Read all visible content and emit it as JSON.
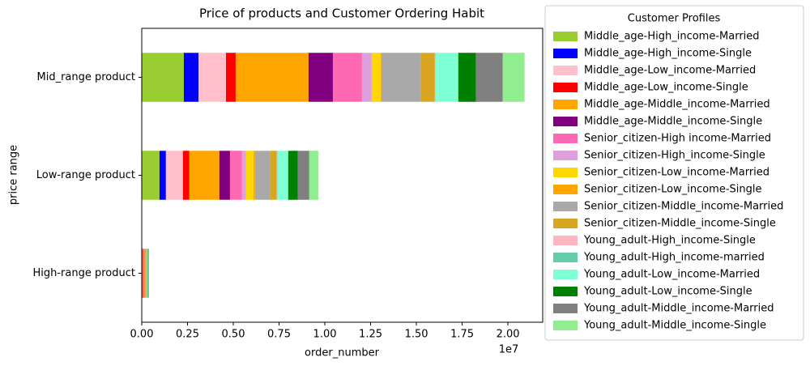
{
  "chart_data": {
    "type": "stacked_barh",
    "title": "Price of products and Customer Ordering Habit",
    "x_label": "order_number",
    "y_label": "price range",
    "x_offset_label": "1e7",
    "legend_title": "Customer Profiles",
    "legend_position": "outside-right",
    "categories": [
      "High-range product",
      "Low-range product",
      "Mid_range product"
    ],
    "xlim": [
      0,
      21900000
    ],
    "xticks": [
      {
        "value": 0,
        "label": "0.00"
      },
      {
        "value": 2500000,
        "label": "0.25"
      },
      {
        "value": 5000000,
        "label": "0.50"
      },
      {
        "value": 7500000,
        "label": "0.75"
      },
      {
        "value": 10000000,
        "label": "1.00"
      },
      {
        "value": 12500000,
        "label": "1.25"
      },
      {
        "value": 15000000,
        "label": "1.50"
      },
      {
        "value": 17500000,
        "label": "1.75"
      },
      {
        "value": 20000000,
        "label": "2.00"
      }
    ],
    "series": [
      {
        "name": "Middle_age-High_income-Married",
        "color": "#9acd32",
        "values": [
          30000,
          970000,
          2300000
        ]
      },
      {
        "name": "Middle_age-High_income-Single",
        "color": "#0000ff",
        "values": [
          10000,
          350000,
          800000
        ]
      },
      {
        "name": "Middle_age-Low_income-Married",
        "color": "#ffc0cb",
        "values": [
          20000,
          930000,
          1500000
        ]
      },
      {
        "name": "Middle_age-Low_income-Single",
        "color": "#ff0000",
        "values": [
          30000,
          350000,
          530000
        ]
      },
      {
        "name": "Middle_age-Middle_income-Married",
        "color": "#ffa500",
        "values": [
          80000,
          1640000,
          3980000
        ]
      },
      {
        "name": "Middle_age-Middle_income-Single",
        "color": "#800080",
        "values": [
          20000,
          580000,
          1330000
        ]
      },
      {
        "name": "Senior_citizen-High income-Married",
        "color": "#ff69b4",
        "values": [
          20000,
          660000,
          1590000
        ]
      },
      {
        "name": "Senior_citizen-High_income-Single",
        "color": "#dda0dd",
        "values": [
          10000,
          220000,
          530000
        ]
      },
      {
        "name": "Senior_citizen-Low_income-Married",
        "color": "#ffd700",
        "values": [
          10000,
          400000,
          490000
        ]
      },
      {
        "name": "Senior_citizen-Low_income-Single",
        "color": "#ffa500",
        "values": [
          10000,
          90000,
          40000
        ]
      },
      {
        "name": "Senior_citizen-Middle_income-Married",
        "color": "#a9a9a9",
        "values": [
          40000,
          840000,
          2170000
        ]
      },
      {
        "name": "Senior_citizen-Middle_income-Single",
        "color": "#daa520",
        "values": [
          10000,
          350000,
          750000
        ]
      },
      {
        "name": "Young_adult-High_income-Single",
        "color": "#ffb6c1",
        "values": [
          5000,
          20000,
          20000
        ]
      },
      {
        "name": "Young_adult-High_income-married",
        "color": "#66cdaa",
        "values": [
          20000,
          20000,
          20000
        ]
      },
      {
        "name": "Young_adult-Low_income-Married",
        "color": "#7fffd4",
        "values": [
          20000,
          580000,
          1240000
        ]
      },
      {
        "name": "Young_adult-Low_income-Single",
        "color": "#008000",
        "values": [
          20000,
          530000,
          970000
        ]
      },
      {
        "name": "Young_adult-Middle_income-Married",
        "color": "#808080",
        "values": [
          20000,
          620000,
          1460000
        ]
      },
      {
        "name": "Young_adult-Middle_income-Single",
        "color": "#90ee90",
        "values": [
          20000,
          490000,
          1190000
        ]
      }
    ]
  }
}
